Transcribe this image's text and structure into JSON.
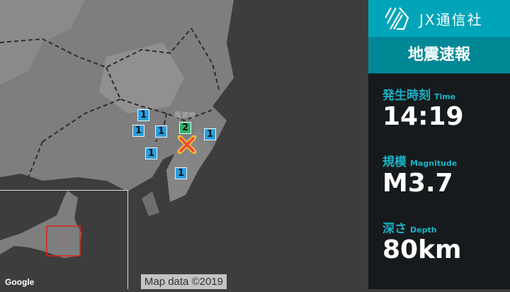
{
  "brand": {
    "name": "JX通信社"
  },
  "header": {
    "title": "地震速報"
  },
  "info": {
    "time": {
      "label": "発生時刻",
      "label_en": "Time",
      "value": "14:19"
    },
    "magnitude": {
      "label": "規模",
      "label_en": "Magnitude",
      "value": "M3.7"
    },
    "depth": {
      "label": "深さ",
      "label_en": "Depth",
      "value": "80km"
    }
  },
  "map": {
    "epicenter_label": "震源地",
    "epicenter_intensity": "2",
    "stations": [
      "1",
      "1",
      "1",
      "1",
      "1",
      "1"
    ],
    "attribution": "Map data ©2019",
    "google_logo": "Google",
    "colors": {
      "intensity_1": "#2a9fdc",
      "intensity_2": "#2eb36a",
      "epicenter": "#e84c3d",
      "inset_frame": "#e0201b"
    }
  }
}
